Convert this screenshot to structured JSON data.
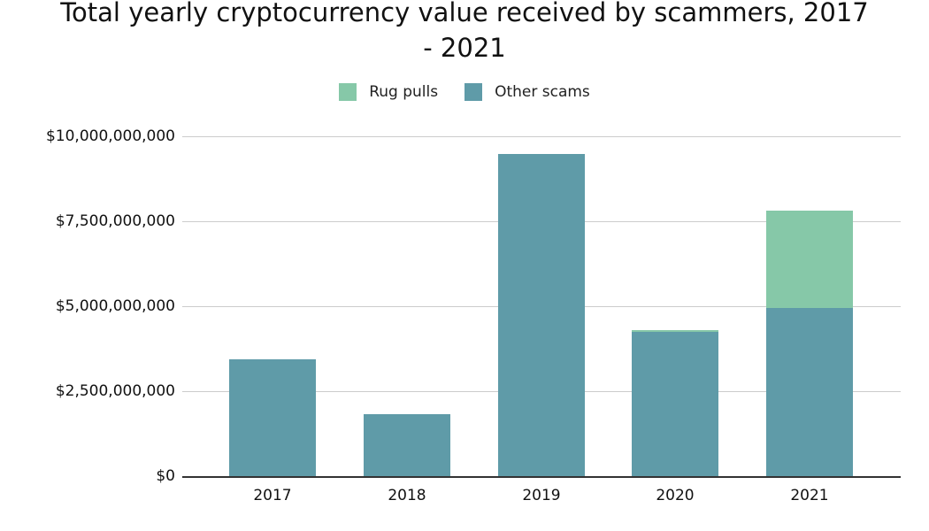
{
  "chart_data": {
    "type": "bar",
    "stacked": true,
    "title": "Total yearly cryptocurrency value received by scammers, 2017 - 2021",
    "title_line1": "Total yearly cryptocurrency value received by scammers, 2017",
    "title_line2": "- 2021",
    "xlabel": "",
    "ylabel": "",
    "categories": [
      "2017",
      "2018",
      "2019",
      "2020",
      "2021"
    ],
    "series": [
      {
        "name": "Other scams",
        "color": "#5f9ba8",
        "values": [
          3440000000,
          1820000000,
          9480000000,
          4240000000,
          4950000000
        ]
      },
      {
        "name": "Rug pulls",
        "color": "#86c8a8",
        "values": [
          0,
          0,
          0,
          50000000,
          2860000000
        ]
      }
    ],
    "legend": [
      "Rug pulls",
      "Other scams"
    ],
    "legend_position": "top",
    "ylim": [
      0,
      10000000000
    ],
    "yticks": [
      "$0",
      "$2,500,000,000",
      "$5,000,000,000",
      "$7,500,000,000",
      "$10,000,000,000"
    ],
    "grid": true
  }
}
